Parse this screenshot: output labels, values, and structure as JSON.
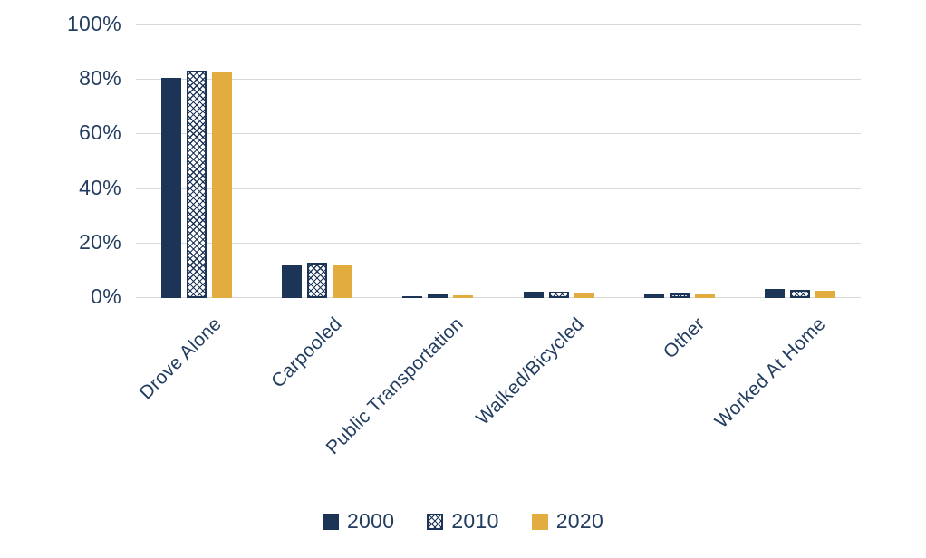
{
  "chart_data": {
    "type": "bar",
    "title": "",
    "categories": [
      "Drove Alone",
      "Carpooled",
      "Public Transportation",
      "Walked/Bicycled",
      "Other",
      "Worked At Home"
    ],
    "series": [
      {
        "name": "2000",
        "fill": "solid-navy",
        "color": "#1C3556",
        "values": [
          80.9,
          12.0,
          0.8,
          2.2,
          1.2,
          3.2
        ]
      },
      {
        "name": "2010",
        "fill": "pattern",
        "pattern": "diamond-lattice",
        "pattern_color": "#1C3556",
        "pattern_background": "#FFFFFF",
        "values": [
          83.3,
          12.8,
          1.4,
          2.2,
          1.8,
          3.0
        ]
      },
      {
        "name": "2020",
        "fill": "solid-gold",
        "color": "#E2AC3F",
        "values": [
          82.6,
          12.3,
          1.0,
          1.8,
          1.5,
          2.8
        ]
      }
    ],
    "ylabel": "",
    "xlabel": "",
    "ylim": [
      0,
      100
    ],
    "yticks": [
      "0%",
      "20%",
      "40%",
      "60%",
      "80%",
      "100%"
    ],
    "grid": true,
    "x_label_rotation_deg": 45,
    "legend_position": "bottom"
  },
  "colors": {
    "navy": "#1C3556",
    "gold": "#E2AC3F",
    "axis_text": "#223D60",
    "gridline": "#D9D9D9",
    "pattern_background": "#FFFFFF",
    "page_background": "#FFFFFF"
  }
}
